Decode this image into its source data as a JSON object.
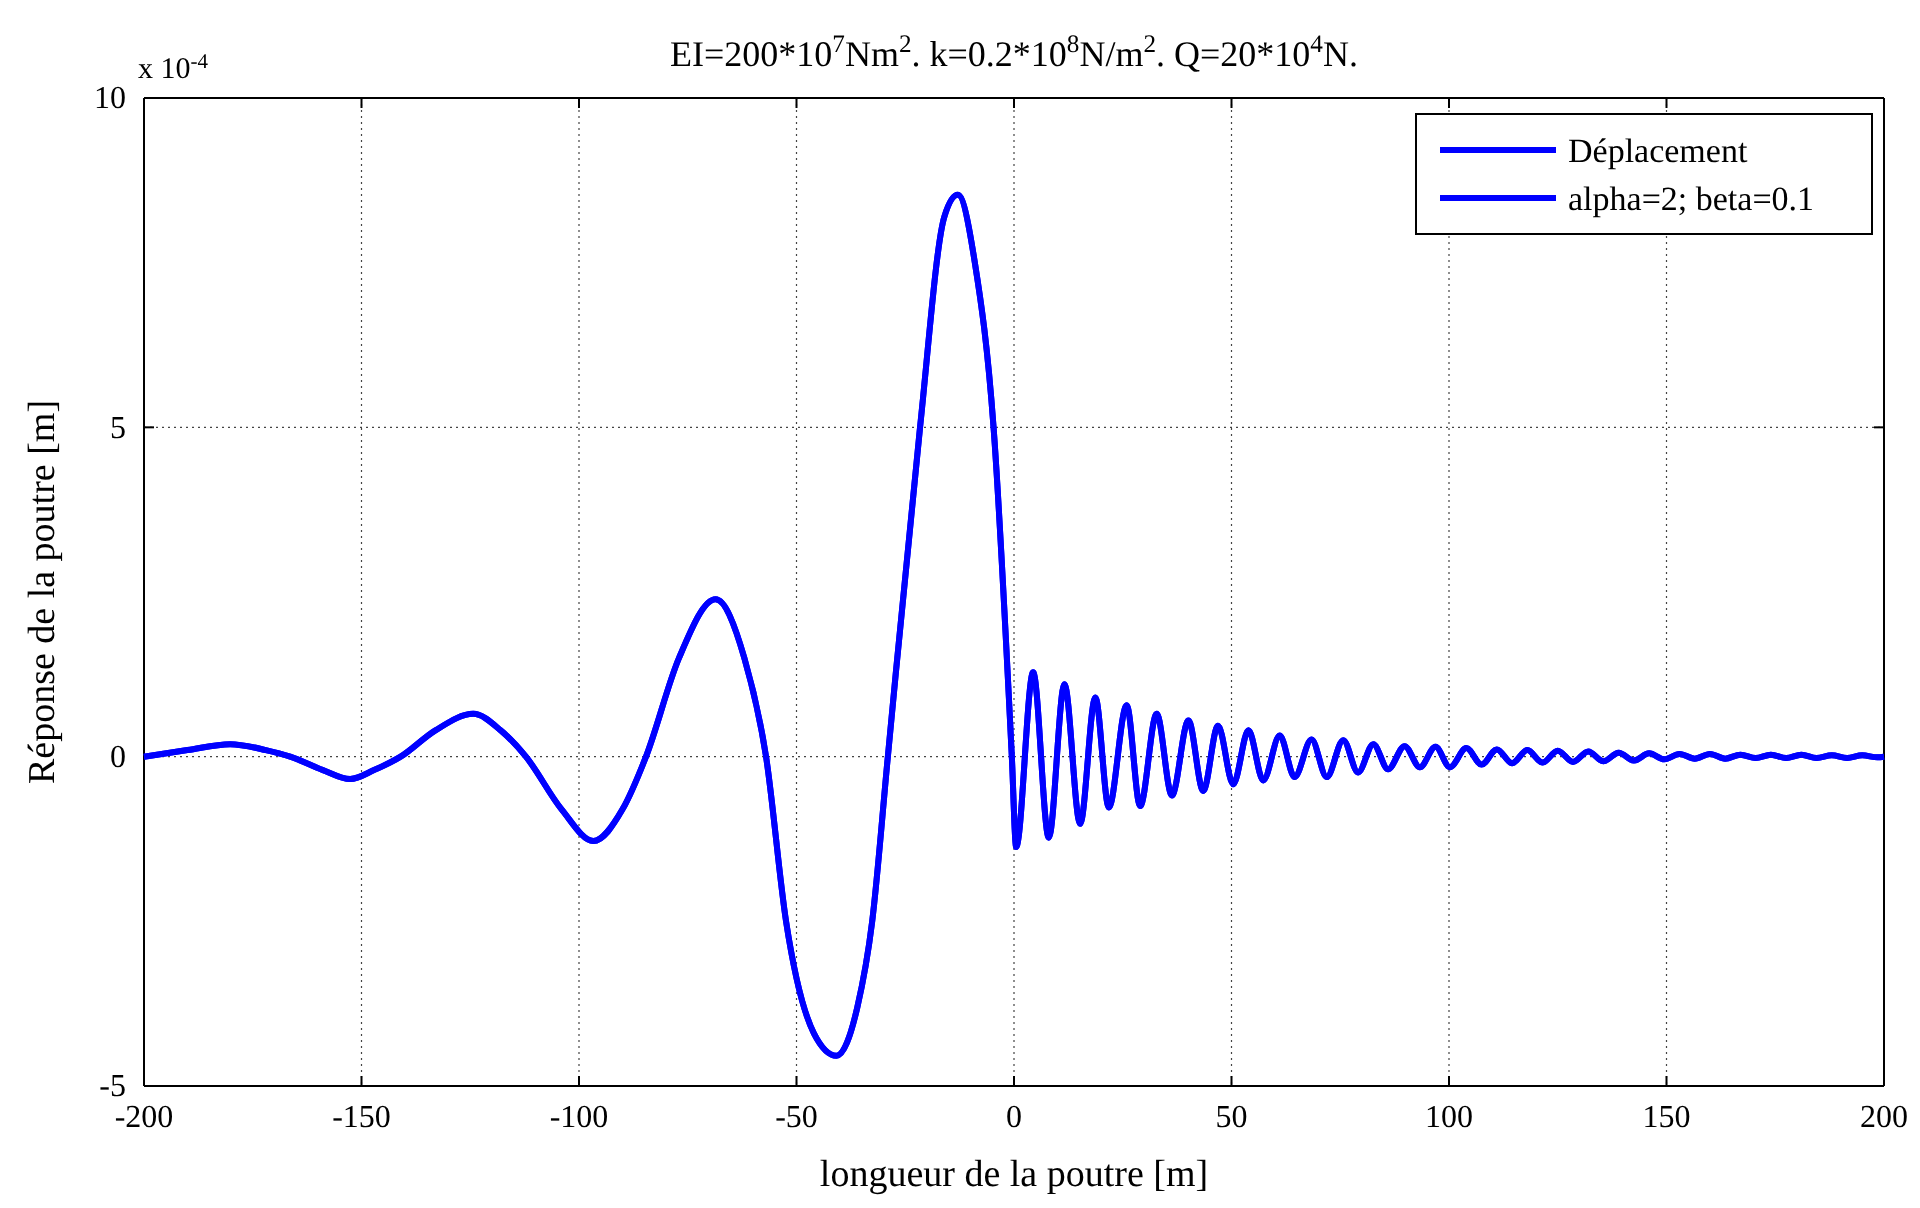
{
  "chart_data": {
    "type": "line",
    "title": "EI=200*10$^{7}$Nm$^{2}$. k=0.2*10$^{8}$N/m$^{2}$. Q=20*10$^{4}$N.",
    "xlabel": "longueur de la poutre [m]",
    "ylabel": "Réponse de la poutre [m]",
    "annotations": [
      "x 10$^{-4}$"
    ],
    "x": [
      -200,
      -190,
      -180.2,
      -172,
      -166.4,
      -159,
      -152.6,
      -147,
      -141,
      -133,
      -124.3,
      -118,
      -112.2,
      -104,
      -96.7,
      -90,
      -84.6,
      -77,
      -68.6,
      -62,
      -57,
      -52.4,
      -46,
      -40.8,
      -36,
      -32.6,
      -29,
      -21.6,
      -16,
      -12.9,
      -9,
      -4.7,
      -0.5,
      0.5,
      4.4,
      8.0,
      11.6,
      15.2,
      18.7,
      21.8,
      25.9,
      29.0,
      32.8,
      36.3,
      40.1,
      43.5,
      46.9,
      50.4,
      53.9,
      57.3,
      61.1,
      64.5,
      68.4,
      71.9,
      75.7,
      79.1,
      82.6,
      86.0,
      89.8,
      93.3,
      96.9,
      100.2,
      104,
      107.5,
      111,
      114.5,
      118,
      121.5,
      125,
      128.5,
      132,
      135.5,
      139,
      142.5,
      146,
      149.5,
      153,
      156.5,
      160,
      163.5,
      167,
      170.5,
      174,
      177.5,
      181,
      184.5,
      188,
      191.5,
      195,
      198.5,
      200
    ],
    "series": [
      {
        "name": "Déplacement",
        "color": "#0000ff",
        "values": [
          0,
          0.1,
          0.19,
          0.1,
          0,
          -0.2,
          -0.34,
          -0.2,
          0,
          0.4,
          0.65,
          0.4,
          0,
          -0.8,
          -1.28,
          -0.8,
          0,
          1.5,
          2.39,
          1.5,
          0,
          -2.5,
          -4.2,
          -4.54,
          -3.8,
          -2.5,
          0,
          5,
          8.2,
          8.53,
          7.5,
          5,
          0,
          -1.37,
          1.28,
          -1.23,
          1.1,
          -1.02,
          0.9,
          -0.77,
          0.78,
          -0.75,
          0.65,
          -0.59,
          0.55,
          -0.52,
          0.47,
          -0.42,
          0.4,
          -0.36,
          0.32,
          -0.31,
          0.26,
          -0.31,
          0.25,
          -0.24,
          0.19,
          -0.19,
          0.16,
          -0.16,
          0.15,
          -0.16,
          0.13,
          -0.12,
          0.11,
          -0.1,
          0.1,
          -0.09,
          0.09,
          -0.08,
          0.08,
          -0.07,
          0.06,
          -0.06,
          0.05,
          -0.04,
          0.04,
          -0.03,
          0.04,
          -0.03,
          0.03,
          -0.02,
          0.03,
          -0.02,
          0.03,
          -0.02,
          0.02,
          -0.02,
          0.02,
          -0.01,
          0
        ]
      },
      {
        "name": "alpha=2; beta=0.1",
        "color": "#0000ff",
        "values": [
          0,
          0.1,
          0.19,
          0.1,
          0,
          -0.2,
          -0.34,
          -0.2,
          0,
          0.4,
          0.65,
          0.4,
          0,
          -0.8,
          -1.28,
          -0.8,
          0,
          1.5,
          2.39,
          1.5,
          0,
          -2.5,
          -4.2,
          -4.54,
          -3.8,
          -2.5,
          0,
          5,
          8.2,
          8.53,
          7.5,
          5,
          0,
          -1.37,
          1.28,
          -1.23,
          1.1,
          -1.02,
          0.9,
          -0.77,
          0.78,
          -0.75,
          0.65,
          -0.59,
          0.55,
          -0.52,
          0.47,
          -0.42,
          0.4,
          -0.36,
          0.32,
          -0.31,
          0.26,
          -0.31,
          0.25,
          -0.24,
          0.19,
          -0.19,
          0.16,
          -0.16,
          0.15,
          -0.16,
          0.13,
          -0.12,
          0.11,
          -0.1,
          0.1,
          -0.09,
          0.09,
          -0.08,
          0.08,
          -0.07,
          0.06,
          -0.06,
          0.05,
          -0.04,
          0.04,
          -0.03,
          0.04,
          -0.03,
          0.03,
          -0.02,
          0.03,
          -0.02,
          0.03,
          -0.02,
          0.02,
          -0.02,
          0.02,
          -0.01,
          0
        ]
      }
    ],
    "xlim": [
      -200,
      200
    ],
    "xticks": [
      -200,
      -150,
      -100,
      -50,
      0,
      50,
      100,
      150,
      200
    ],
    "ylim": [
      -5,
      10
    ],
    "yticks": [
      -5,
      0,
      5,
      10
    ],
    "grid": true,
    "legend": "top right",
    "line_style": "solid",
    "marker": "none"
  }
}
